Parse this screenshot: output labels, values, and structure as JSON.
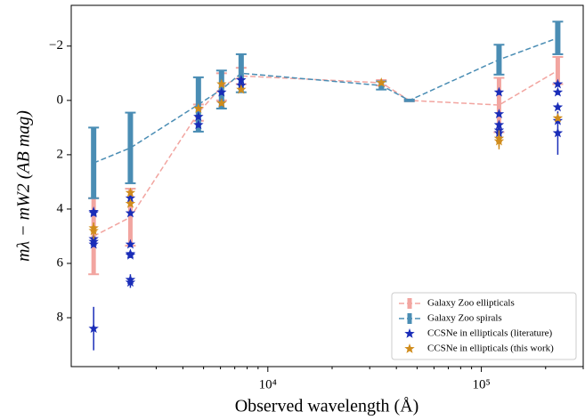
{
  "chart_data": {
    "type": "scatter",
    "xlabel": "Observed wavelength (Å)",
    "ylabel": "mλ − mW2 (AB mag)",
    "xscale": "log",
    "xlim": [
      1200,
      300000
    ],
    "xticks": [
      {
        "value": 10000,
        "label": "10⁴"
      },
      {
        "value": 100000,
        "label": "10⁵"
      }
    ],
    "xminorticks": [
      2000,
      3000,
      4000,
      5000,
      6000,
      7000,
      8000,
      9000,
      20000,
      30000,
      40000,
      50000,
      60000,
      70000,
      80000,
      90000,
      200000,
      300000
    ],
    "ylim": [
      -3.5,
      9.8
    ],
    "yinverted": true,
    "yticks": [
      {
        "value": -2,
        "label": "−2"
      },
      0,
      2,
      4,
      6,
      8
    ],
    "legend": "lower right",
    "series": [
      {
        "name": "Galaxy Zoo ellipticals",
        "marker": "errorbar",
        "color": "#f2a5a0",
        "x": [
          1528,
          2271,
          4730,
          6070,
          7500,
          34000,
          46000,
          121000,
          228000
        ],
        "values": [
          5.0,
          4.3,
          0.45,
          -0.5,
          -0.9,
          -0.65,
          0,
          0.17,
          -1.1
        ],
        "errors": [
          1.4,
          1.05,
          0.3,
          0.5,
          0.3,
          0.1,
          0.03,
          1.0,
          0.5
        ]
      },
      {
        "name": "Galaxy Zoo spirals",
        "marker": "errorbar",
        "color": "#4a8db4",
        "x": [
          1528,
          2271,
          4730,
          6070,
          7500,
          34000,
          46000,
          121000,
          228000
        ],
        "values": [
          2.3,
          1.75,
          0.15,
          -0.4,
          -1.0,
          -0.55,
          0,
          -1.5,
          -2.3
        ],
        "errors": [
          1.3,
          1.3,
          1.0,
          0.7,
          0.7,
          0.15,
          0.03,
          0.55,
          0.6
        ]
      },
      {
        "name": "CCSNe in ellipticals (literature)",
        "marker": "star",
        "color": "#1a2db8",
        "x": [
          1528,
          1528,
          1528,
          1528,
          1528,
          1528,
          2271,
          2271,
          2271,
          2271,
          2271,
          2271,
          2271,
          4730,
          4730,
          6070,
          6070,
          7500,
          7500,
          121000,
          121000,
          121000,
          121000,
          121000,
          228000,
          228000,
          228000,
          228000,
          228000
        ],
        "values": [
          4.1,
          4.15,
          5.1,
          5.2,
          5.3,
          8.4,
          3.6,
          4.15,
          5.3,
          5.65,
          5.7,
          6.6,
          6.7,
          0.6,
          0.9,
          -0.3,
          0.1,
          -0.75,
          -0.55,
          -0.3,
          0.5,
          0.9,
          1.1,
          1.2,
          -0.6,
          -0.3,
          0.25,
          0.75,
          1.2
        ],
        "errors": [
          0.1,
          0.1,
          0.1,
          0.1,
          0.1,
          0.8,
          0.1,
          0.1,
          0.1,
          0.1,
          0.1,
          0.2,
          0.2,
          0.1,
          0.1,
          0.1,
          0.1,
          0.1,
          0.1,
          0.1,
          0.1,
          0.1,
          0.1,
          0.1,
          0.1,
          0.1,
          0.1,
          0.1,
          0.8
        ]
      },
      {
        "name": "CCSNe in ellipticals (this work)",
        "marker": "star",
        "color": "#d08c1c",
        "x": [
          1528,
          1528,
          2271,
          2271,
          4730,
          6070,
          6070,
          7500,
          34000,
          121000,
          121000,
          228000
        ],
        "values": [
          4.7,
          4.8,
          3.4,
          3.8,
          0.3,
          -0.6,
          0.1,
          -0.4,
          -0.65,
          1.4,
          1.5,
          0.65
        ],
        "errors": [
          0.2,
          0.3,
          0.1,
          0.1,
          0.1,
          0.1,
          0.1,
          0.1,
          0.1,
          0.3,
          0.3,
          0.1
        ]
      }
    ]
  }
}
